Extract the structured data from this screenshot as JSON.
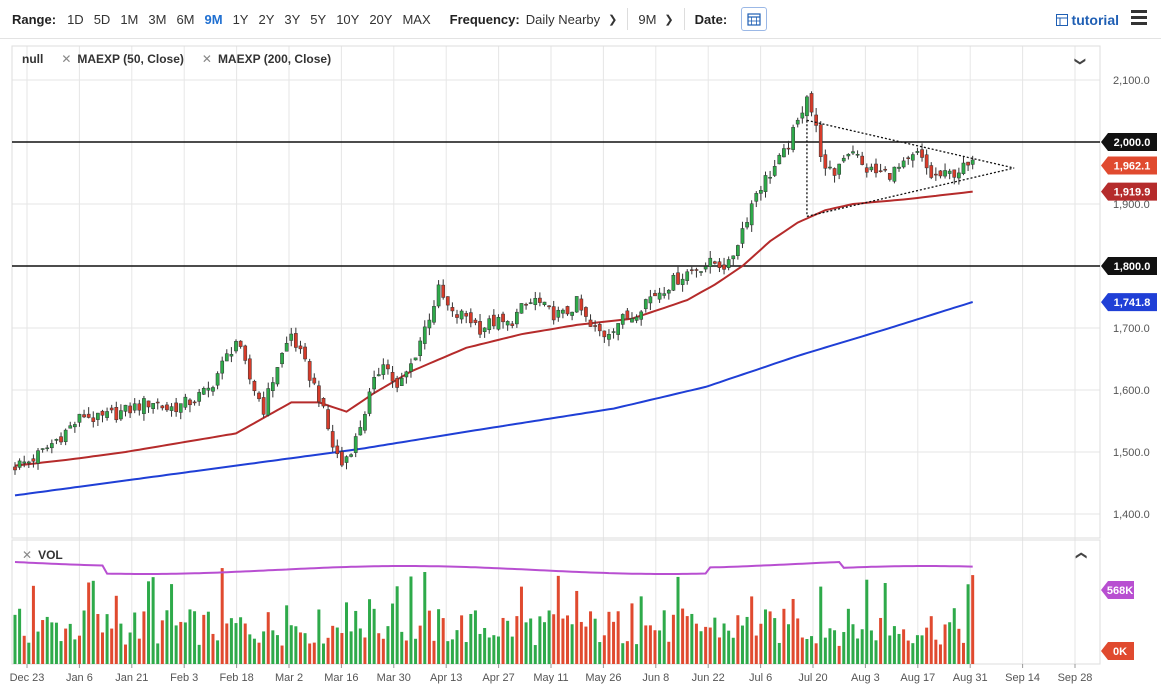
{
  "toolbar": {
    "range_label": "Range:",
    "ranges": [
      "1D",
      "5D",
      "1M",
      "3M",
      "6M",
      "9M",
      "1Y",
      "2Y",
      "3Y",
      "5Y",
      "10Y",
      "20Y",
      "MAX"
    ],
    "active_range": "9M",
    "frequency_label": "Frequency:",
    "frequency_value": "Daily Nearby",
    "period_value": "9M",
    "date_label": "Date:",
    "tutorial_label": "tutorial"
  },
  "legend": {
    "symbol": "null",
    "studies": [
      "MAEXP (50, Close)",
      "MAEXP (200, Close)"
    ]
  },
  "volume_label": "VOL",
  "colors": {
    "up": "#2eaa4a",
    "down": "#e04a2f",
    "ma50": "#b52b2b",
    "ma200": "#1f3fd6",
    "vol_avg": "#b84fd1",
    "accent": "#1f6fd1"
  },
  "chart_data": {
    "type": "candlestick",
    "x_ticks": [
      "Dec 23",
      "Jan 6",
      "Jan 21",
      "Feb 3",
      "Feb 18",
      "Mar 2",
      "Mar 16",
      "Mar 30",
      "Apr 13",
      "Apr 27",
      "May 11",
      "May 26",
      "Jun 8",
      "Jun 22",
      "Jul 6",
      "Jul 20",
      "Aug 3",
      "Aug 17",
      "Aug 31",
      "Sep 14",
      "Sep 28"
    ],
    "y_ticks": [
      "2,100.0",
      "2,000.0",
      "1,900.0",
      "1,800.0",
      "1,700.0",
      "1,600.0",
      "1,500.0",
      "1,400.0"
    ],
    "ylim": [
      1380,
      2120
    ],
    "horizontal_lines": [
      2000,
      1800
    ],
    "price_badges": [
      {
        "label": "2,000.0",
        "value": 2000,
        "color": "#111111"
      },
      {
        "label": "1,962.1",
        "value": 1962.1,
        "color": "#e04a2f"
      },
      {
        "label": "1,919.9",
        "value": 1919.9,
        "color": "#b52b2b"
      },
      {
        "label": "1,800.0",
        "value": 1800,
        "color": "#111111"
      },
      {
        "label": "1,741.8",
        "value": 1741.8,
        "color": "#1f3fd6"
      }
    ],
    "close_path": [
      [
        0,
        1478
      ],
      [
        3,
        1485
      ],
      [
        6,
        1500
      ],
      [
        9,
        1520
      ],
      [
        12,
        1540
      ],
      [
        15,
        1560
      ],
      [
        18,
        1552
      ],
      [
        21,
        1560
      ],
      [
        24,
        1566
      ],
      [
        27,
        1575
      ],
      [
        30,
        1582
      ],
      [
        33,
        1570
      ],
      [
        36,
        1575
      ],
      [
        39,
        1585
      ],
      [
        42,
        1600
      ],
      [
        45,
        1640
      ],
      [
        48,
        1680
      ],
      [
        51,
        1618
      ],
      [
        54,
        1570
      ],
      [
        57,
        1640
      ],
      [
        60,
        1690
      ],
      [
        63,
        1640
      ],
      [
        66,
        1590
      ],
      [
        69,
        1510
      ],
      [
        71,
        1480
      ],
      [
        74,
        1520
      ],
      [
        77,
        1590
      ],
      [
        80,
        1650
      ],
      [
        83,
        1600
      ],
      [
        86,
        1640
      ],
      [
        89,
        1700
      ],
      [
        92,
        1760
      ],
      [
        95,
        1720
      ],
      [
        98,
        1720
      ],
      [
        101,
        1700
      ],
      [
        104,
        1710
      ],
      [
        107,
        1705
      ],
      [
        110,
        1730
      ],
      [
        113,
        1745
      ],
      [
        116,
        1725
      ],
      [
        119,
        1720
      ],
      [
        122,
        1740
      ],
      [
        125,
        1700
      ],
      [
        128,
        1690
      ],
      [
        131,
        1710
      ],
      [
        134,
        1720
      ],
      [
        137,
        1745
      ],
      [
        140,
        1760
      ],
      [
        143,
        1775
      ],
      [
        146,
        1790
      ],
      [
        149,
        1800
      ],
      [
        152,
        1805
      ],
      [
        155,
        1800
      ],
      [
        158,
        1860
      ],
      [
        161,
        1920
      ],
      [
        164,
        1950
      ],
      [
        167,
        1980
      ],
      [
        170,
        2030
      ],
      [
        172,
        2080
      ],
      [
        174,
        2020
      ],
      [
        176,
        1950
      ],
      [
        178,
        1950
      ],
      [
        180,
        1980
      ],
      [
        182,
        1990
      ],
      [
        184,
        1960
      ],
      [
        187,
        1950
      ],
      [
        190,
        1950
      ],
      [
        193,
        1960
      ],
      [
        196,
        1980
      ],
      [
        199,
        1945
      ],
      [
        202,
        1945
      ],
      [
        205,
        1955
      ],
      [
        208,
        1962
      ]
    ],
    "ma50_path": [
      [
        0,
        1478
      ],
      [
        12,
        1488
      ],
      [
        24,
        1500
      ],
      [
        36,
        1515
      ],
      [
        48,
        1530
      ],
      [
        60,
        1580
      ],
      [
        66,
        1580
      ],
      [
        72,
        1565
      ],
      [
        78,
        1595
      ],
      [
        86,
        1630
      ],
      [
        98,
        1668
      ],
      [
        110,
        1690
      ],
      [
        122,
        1705
      ],
      [
        134,
        1715
      ],
      [
        146,
        1745
      ],
      [
        152,
        1770
      ],
      [
        158,
        1800
      ],
      [
        164,
        1840
      ],
      [
        170,
        1870
      ],
      [
        176,
        1890
      ],
      [
        182,
        1900
      ],
      [
        194,
        1908
      ],
      [
        208,
        1920
      ]
    ],
    "ma200_path": [
      [
        0,
        1430
      ],
      [
        30,
        1460
      ],
      [
        60,
        1490
      ],
      [
        75,
        1505
      ],
      [
        100,
        1535
      ],
      [
        130,
        1570
      ],
      [
        150,
        1605
      ],
      [
        170,
        1655
      ],
      [
        190,
        1700
      ],
      [
        208,
        1742
      ]
    ],
    "triangle": {
      "upper": [
        [
          172,
          2035
        ],
        [
          217,
          1958
        ]
      ],
      "lower": [
        [
          172,
          1880
        ],
        [
          217,
          1958
        ]
      ],
      "left": [
        [
          172,
          2035
        ],
        [
          172,
          1880
        ]
      ]
    },
    "volume": {
      "labels": [
        "568K",
        "0K"
      ],
      "avg_value_k": 568
    }
  }
}
